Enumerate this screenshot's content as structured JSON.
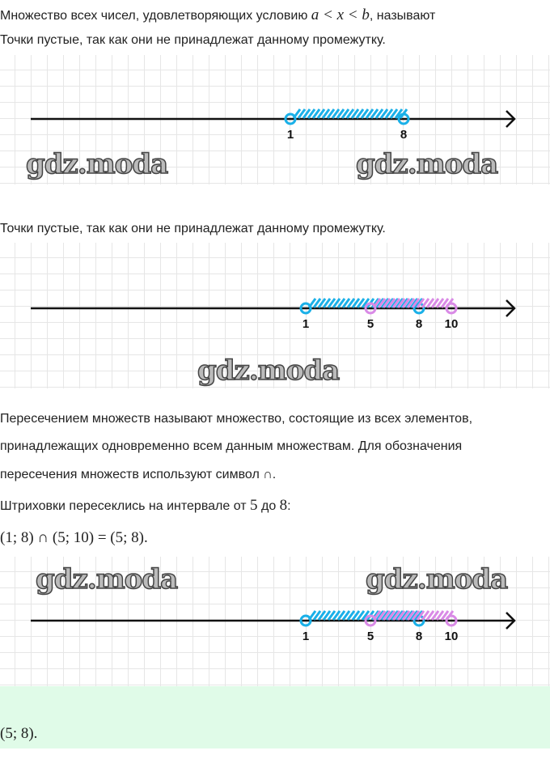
{
  "text": {
    "line1_prefix": "Множество всех чисел, удовлетворяющих условию ",
    "line1_math": "a < x < b",
    "line1_suffix": ", называют",
    "line2": "Точки пустые, так как они не принадлежат данному промежутку.",
    "line3": "Точки пустые, так как они не принадлежат данному промежутку.",
    "def1": "Пересечением множеств называют множество, состоящие из всех элементов,",
    "def2": "принадлежащих одновременно всем данным множествам. Для обозначения",
    "def3": "пересечения множеств используют символ ∩.",
    "hatch_prefix": "Штриховки пересеклись на интервале от ",
    "hatch_a": "5",
    "hatch_mid": " до ",
    "hatch_b": "8",
    "hatch_suffix": ":",
    "formula": "(1;  8) ∩ (5;  10) = (5;  8).",
    "answer": "(5;  8)."
  },
  "watermark": "gdz.moda",
  "colors": {
    "blue": "#1ab0e8",
    "violet": "#d98ae6",
    "axis": "#111111",
    "answer_bg": "#e0fbe8"
  },
  "number_lines": [
    {
      "intervals": [
        {
          "from": 1,
          "to": 8,
          "color": "blue"
        }
      ],
      "labels": [
        "1",
        "8"
      ],
      "label_values": [
        1,
        8
      ]
    },
    {
      "intervals": [
        {
          "from": 1,
          "to": 8,
          "color": "blue"
        },
        {
          "from": 5,
          "to": 10,
          "color": "violet"
        }
      ],
      "labels": [
        "1",
        "5",
        "8",
        "10"
      ],
      "label_values": [
        1,
        5,
        8,
        10
      ]
    },
    {
      "intervals": [
        {
          "from": 1,
          "to": 8,
          "color": "blue"
        },
        {
          "from": 5,
          "to": 10,
          "color": "violet"
        }
      ],
      "labels": [
        "1",
        "5",
        "8",
        "10"
      ],
      "label_values": [
        1,
        5,
        8,
        10
      ]
    }
  ]
}
